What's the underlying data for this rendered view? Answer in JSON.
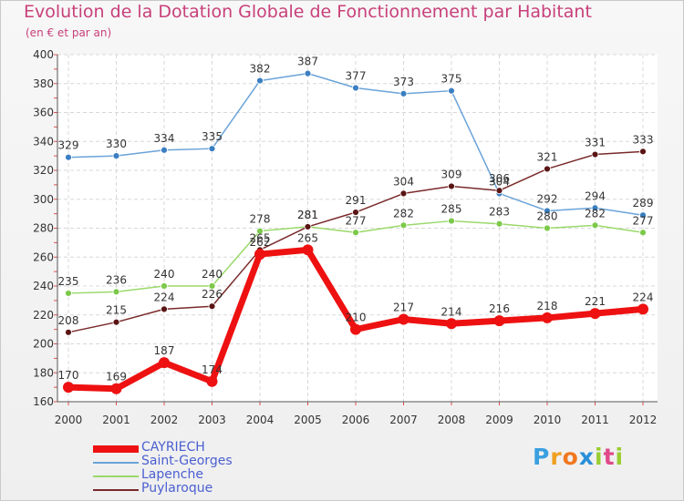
{
  "title": "Evolution de la Dotation Globale de Fonctionnement par Habitant",
  "subtitle": "(en € et par an)",
  "chart_data": {
    "type": "line",
    "categories": [
      "2000",
      "2001",
      "2002",
      "2003",
      "2004",
      "2005",
      "2006",
      "2007",
      "2008",
      "2009",
      "2010",
      "2011",
      "2012"
    ],
    "ylim": [
      160,
      400
    ],
    "yticks": [
      160,
      180,
      200,
      220,
      240,
      260,
      280,
      300,
      320,
      340,
      360,
      380,
      400
    ],
    "grid": true,
    "legend_position": "bottom-left",
    "series": [
      {
        "name": "Saint-Georges",
        "color": "#6aa3d8",
        "marker": "#3a7fc2",
        "values": [
          329,
          330,
          334,
          335,
          382,
          387,
          377,
          373,
          375,
          304,
          292,
          294,
          289
        ]
      },
      {
        "name": "Lapenche",
        "color": "#9ad96a",
        "marker": "#7cc94a",
        "values": [
          235,
          236,
          240,
          240,
          278,
          281,
          277,
          282,
          285,
          283,
          280,
          282,
          277
        ]
      },
      {
        "name": "Puylaroque",
        "color": "#7a2a2a",
        "marker": "#5a1414",
        "values": [
          208,
          215,
          224,
          226,
          265,
          281,
          291,
          304,
          309,
          306,
          321,
          331,
          333
        ]
      },
      {
        "name": "CAYRIECH",
        "color": "#ee1111",
        "marker": "#ee1111",
        "values": [
          170,
          169,
          187,
          174,
          262,
          265,
          210,
          217,
          214,
          216,
          218,
          221,
          224
        ]
      }
    ]
  },
  "legend": [
    {
      "label": "CAYRIECH",
      "color": "#ee1111",
      "thick": true
    },
    {
      "label": "Saint-Georges",
      "color": "#6aa3d8",
      "thick": false
    },
    {
      "label": "Lapenche",
      "color": "#9ad96a",
      "thick": false
    },
    {
      "label": "Puylaroque",
      "color": "#7a2a2a",
      "thick": false
    }
  ],
  "logo": {
    "letters": [
      "P",
      "r",
      "o",
      "x",
      "i",
      "t",
      "i"
    ],
    "colors": [
      "#3aa0e0",
      "#f0a020",
      "#f07820",
      "#2a8fd8",
      "#9acd32",
      "#e04a8a",
      "#9acd32"
    ]
  }
}
